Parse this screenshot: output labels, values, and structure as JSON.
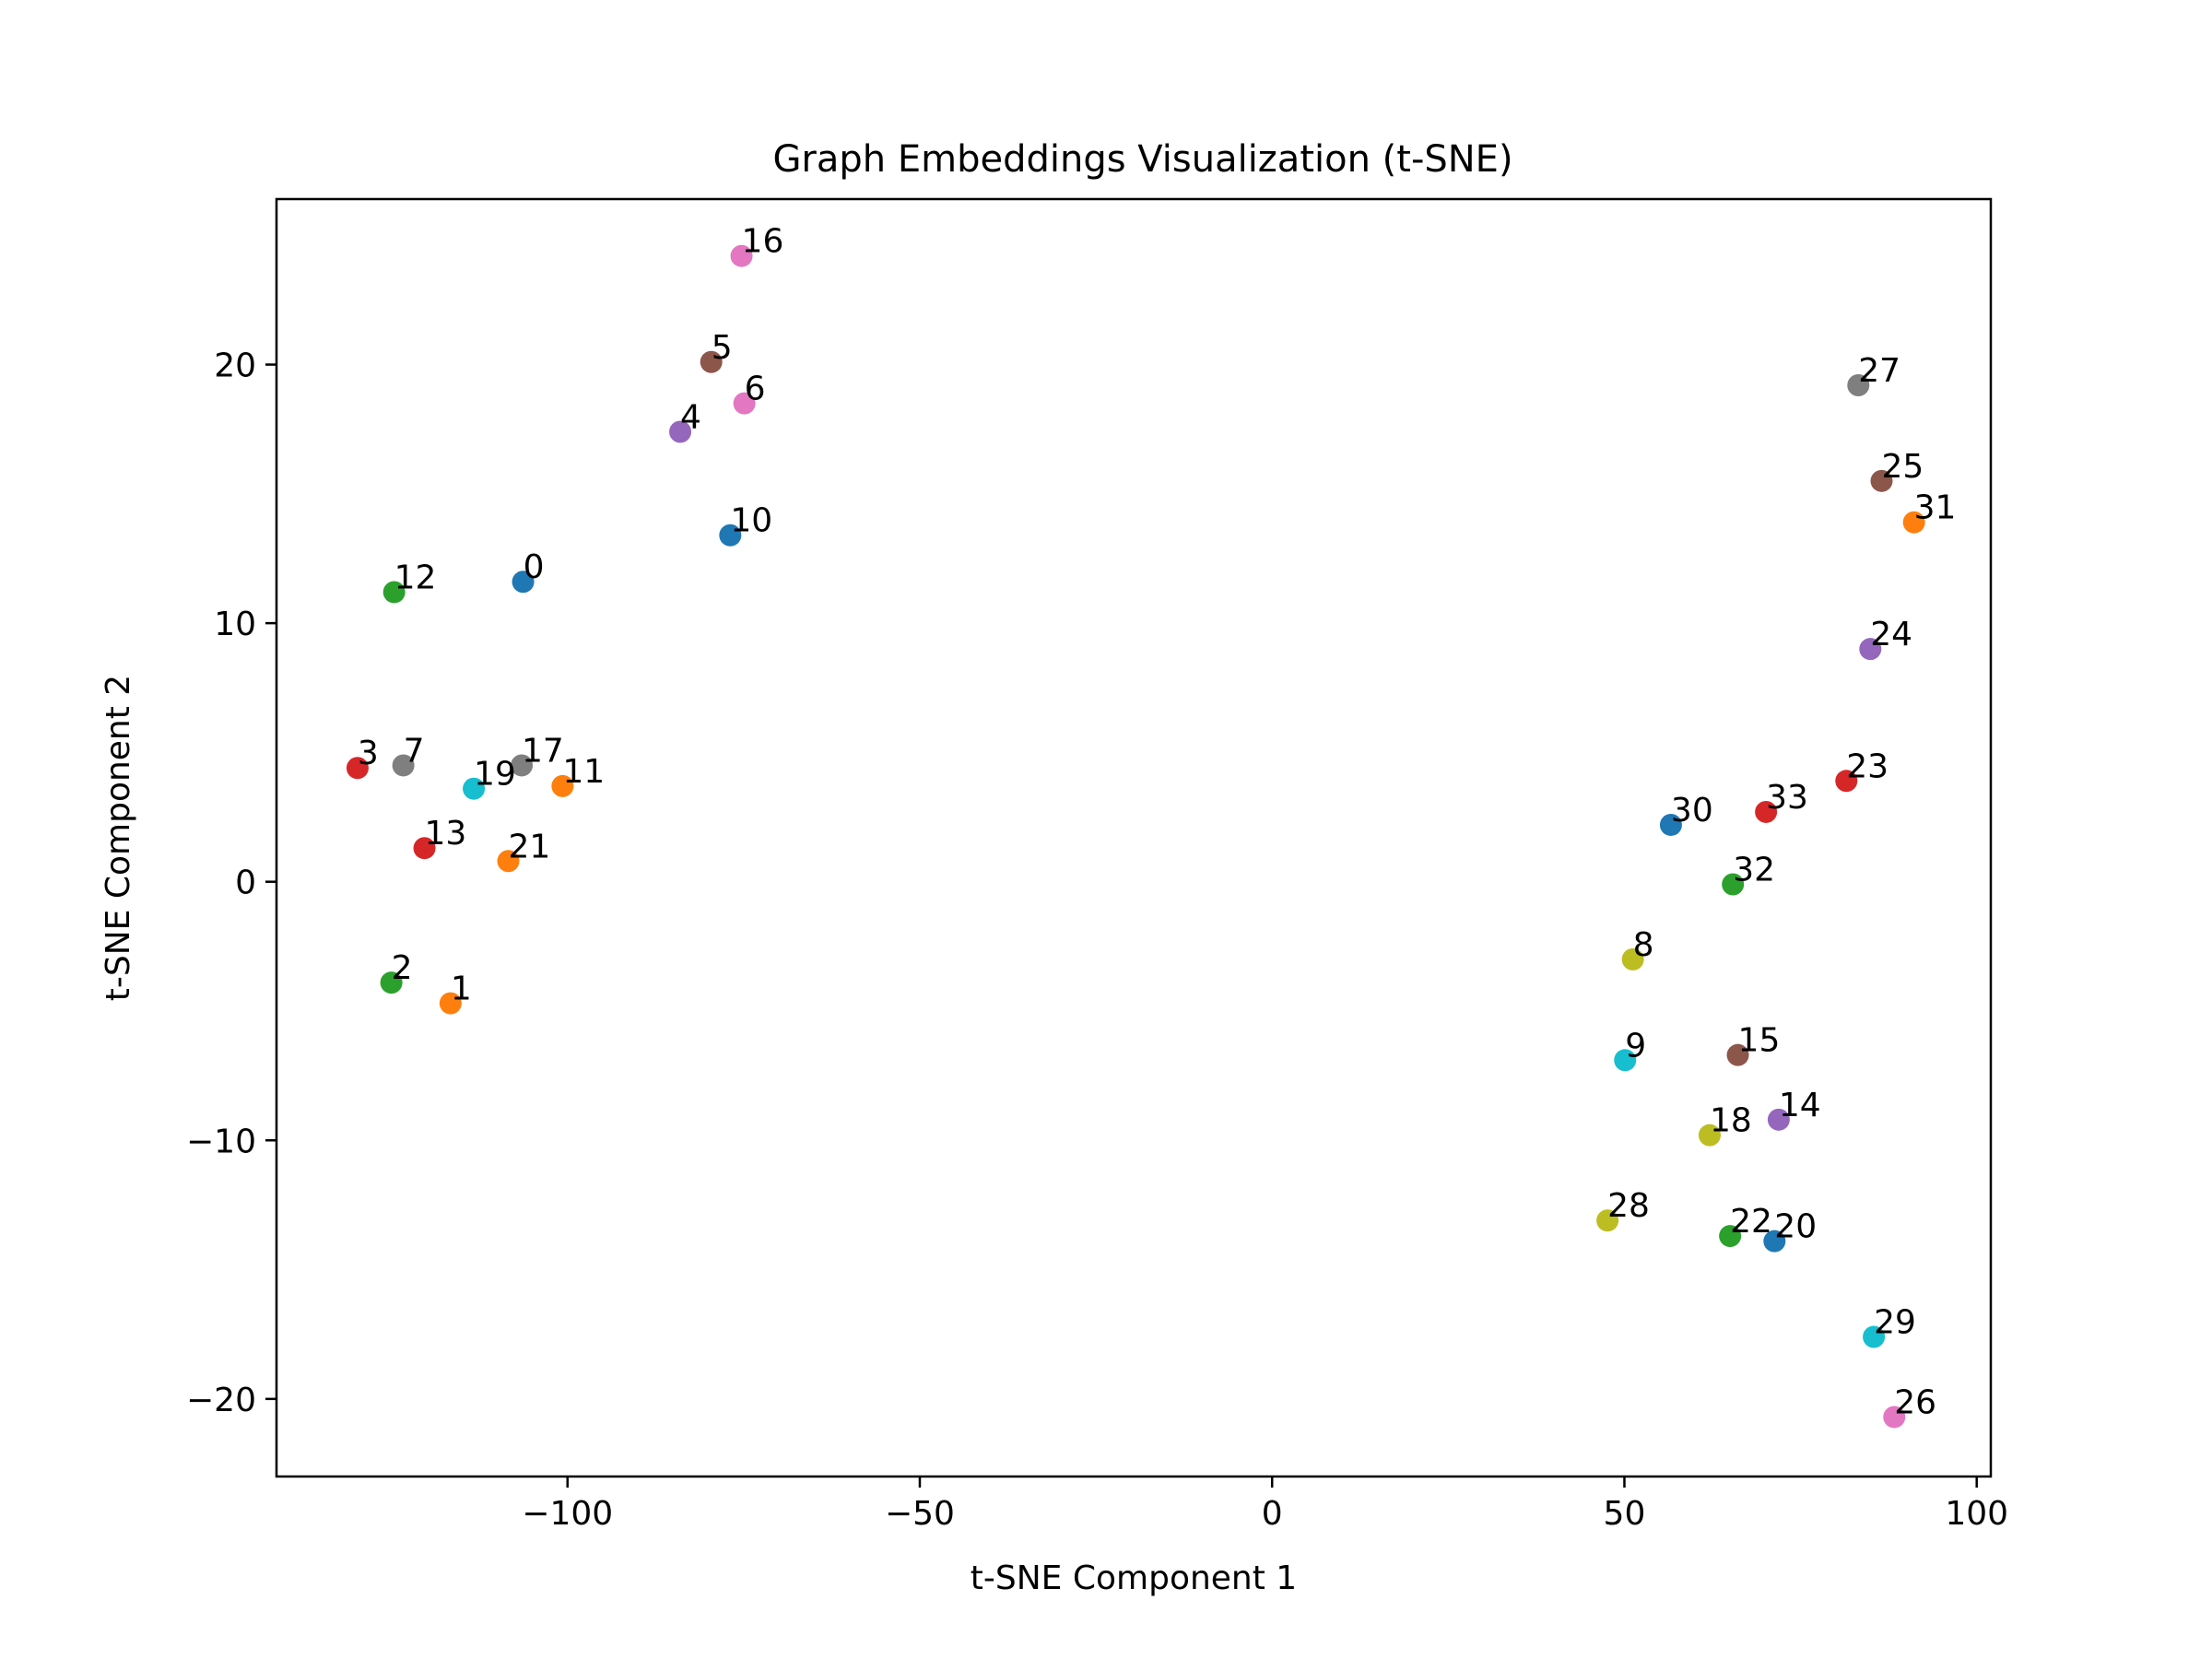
{
  "chart_data": {
    "type": "scatter",
    "title": "Graph Embeddings Visualization (t-SNE)",
    "xlabel": "t-SNE Component 1",
    "ylabel": "t-SNE Component 2",
    "xlim": [
      -141.3,
      102.0
    ],
    "ylim": [
      -23.0,
      26.4
    ],
    "x_ticks": [
      -100,
      -50,
      0,
      50,
      100
    ],
    "x_tick_labels": [
      "−100",
      "−50",
      "0",
      "50",
      "100"
    ],
    "y_ticks": [
      -20,
      -10,
      0,
      10,
      20
    ],
    "y_tick_labels": [
      "−20",
      "−10",
      "0",
      "10",
      "20"
    ],
    "grid": false,
    "palette": [
      "#1f77b4",
      "#ff7f0e",
      "#2ca02c",
      "#d62728",
      "#9467bd",
      "#8c564b",
      "#e377c2",
      "#7f7f7f",
      "#bcbd22",
      "#17becf"
    ],
    "points": [
      {
        "label": "0",
        "x": -106.3,
        "y": 11.6
      },
      {
        "label": "1",
        "x": -116.6,
        "y": -4.7
      },
      {
        "label": "2",
        "x": -125.0,
        "y": -3.9
      },
      {
        "label": "3",
        "x": -129.8,
        "y": 4.4
      },
      {
        "label": "4",
        "x": -84.0,
        "y": 17.4
      },
      {
        "label": "5",
        "x": -79.6,
        "y": 20.1
      },
      {
        "label": "6",
        "x": -74.9,
        "y": 18.5
      },
      {
        "label": "7",
        "x": -123.3,
        "y": 4.5
      },
      {
        "label": "8",
        "x": 51.2,
        "y": -3.0
      },
      {
        "label": "9",
        "x": 50.1,
        "y": -6.9
      },
      {
        "label": "10",
        "x": -76.9,
        "y": 13.4
      },
      {
        "label": "11",
        "x": -100.7,
        "y": 3.7
      },
      {
        "label": "12",
        "x": -124.6,
        "y": 11.2
      },
      {
        "label": "13",
        "x": -120.3,
        "y": 1.3
      },
      {
        "label": "14",
        "x": 71.9,
        "y": -9.2
      },
      {
        "label": "15",
        "x": 66.1,
        "y": -6.7
      },
      {
        "label": "16",
        "x": -75.3,
        "y": 24.2
      },
      {
        "label": "17",
        "x": -106.5,
        "y": 4.5
      },
      {
        "label": "18",
        "x": 62.1,
        "y": -9.8
      },
      {
        "label": "19",
        "x": -113.3,
        "y": 3.6
      },
      {
        "label": "20",
        "x": 71.3,
        "y": -13.9
      },
      {
        "label": "21",
        "x": -108.4,
        "y": 0.8
      },
      {
        "label": "22",
        "x": 65.0,
        "y": -13.7
      },
      {
        "label": "23",
        "x": 81.5,
        "y": 3.9
      },
      {
        "label": "24",
        "x": 84.9,
        "y": 9.0
      },
      {
        "label": "25",
        "x": 86.5,
        "y": 15.5
      },
      {
        "label": "26",
        "x": 88.3,
        "y": -20.7
      },
      {
        "label": "27",
        "x": 83.2,
        "y": 19.2
      },
      {
        "label": "28",
        "x": 47.6,
        "y": -13.1
      },
      {
        "label": "29",
        "x": 85.4,
        "y": -17.6
      },
      {
        "label": "30",
        "x": 56.6,
        "y": 2.2
      },
      {
        "label": "31",
        "x": 91.1,
        "y": 13.9
      },
      {
        "label": "32",
        "x": 65.4,
        "y": -0.1
      },
      {
        "label": "33",
        "x": 70.1,
        "y": 2.7
      }
    ]
  }
}
